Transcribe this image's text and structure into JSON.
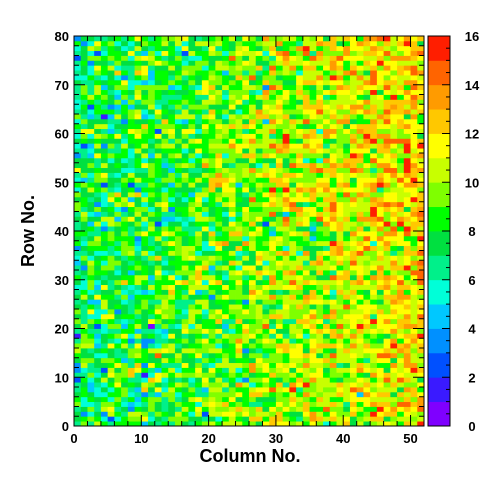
{
  "chart_data": {
    "type": "heatmap",
    "title": "",
    "xlabel": "Column No.",
    "ylabel": "Row No.",
    "x_range": [
      0,
      52
    ],
    "y_range": [
      0,
      80
    ],
    "x_ticks": [
      0,
      10,
      20,
      30,
      40,
      50
    ],
    "y_ticks": [
      0,
      10,
      20,
      30,
      40,
      50,
      60,
      70,
      80
    ],
    "x_tick_labels": [
      "0",
      "10",
      "20",
      "30",
      "40",
      "50"
    ],
    "y_tick_labels": [
      "0",
      "10",
      "20",
      "30",
      "40",
      "50",
      "60",
      "70",
      "80"
    ],
    "nx": 52,
    "ny": 80,
    "z_range": [
      0,
      16
    ],
    "colorbar_ticks": [
      0,
      2,
      4,
      6,
      8,
      10,
      12,
      14,
      16
    ],
    "colorbar_tick_labels": [
      "0",
      "2",
      "4",
      "6",
      "8",
      "10",
      "12",
      "14",
      "16"
    ],
    "colorbar_colors": [
      "#7f00ff",
      "#3a1aff",
      "#0050ff",
      "#0090ff",
      "#00c8ff",
      "#00ffd8",
      "#00f08a",
      "#00e040",
      "#00ff00",
      "#7fff00",
      "#c8ff00",
      "#ffff00",
      "#ffc800",
      "#ff9b00",
      "#ff6400",
      "#ff1e00"
    ],
    "value_trend": {
      "description_of_gradient": "values increase from ~7 on the left to ~11-12 on the right",
      "left_mean": 7.3,
      "right_mean": 11.5,
      "noise_sd": 1.9,
      "low_edge_cells": [
        {
          "col": 0,
          "row": 79,
          "value": 3
        },
        {
          "col": 0,
          "row": 55,
          "value": 3
        },
        {
          "col": 0,
          "row": 9,
          "value": 2
        },
        {
          "col": 1,
          "row": 2,
          "value": 3
        },
        {
          "col": 5,
          "row": 1,
          "value": 2
        },
        {
          "col": 8,
          "row": 3,
          "value": 3
        },
        {
          "col": 19,
          "row": 2,
          "value": 2
        },
        {
          "col": 25,
          "row": 15,
          "value": 3
        },
        {
          "col": 2,
          "row": 74,
          "value": 3
        },
        {
          "col": 12,
          "row": 60,
          "value": 2
        }
      ]
    }
  }
}
